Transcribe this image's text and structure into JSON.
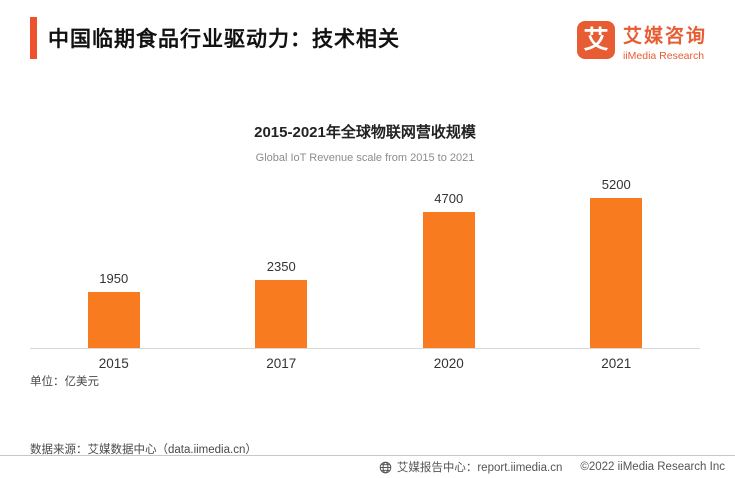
{
  "colors": {
    "accent_red": "#F0512D",
    "logo_orange": "#E85C33",
    "bar_orange": "#F87B20",
    "axis_line": "#d8d8d8"
  },
  "header": {
    "title": "中国临期食品行业驱动力：技术相关"
  },
  "logo": {
    "icon_char": "艾",
    "name_cn": "艾媒咨询",
    "name_en": "iiMedia Research"
  },
  "chart_data": {
    "type": "bar",
    "title": "2015-2021年全球物联网营收规模",
    "subtitle": "Global IoT Revenue scale from 2015 to 2021",
    "categories": [
      "2015",
      "2017",
      "2020",
      "2021"
    ],
    "values": [
      1950,
      2350,
      4700,
      5200
    ],
    "unit_label": "单位：亿美元",
    "bar_color": "#F87B20",
    "ylim": [
      0,
      5200
    ],
    "grid": false,
    "legend_position": "none",
    "value_labels": true
  },
  "source_note": "数据来源：艾媒数据中心（data.iimedia.cn）",
  "footer": {
    "report_center": "艾媒报告中心：report.iimedia.cn",
    "copyright": "©2022  iiMedia Research Inc"
  }
}
